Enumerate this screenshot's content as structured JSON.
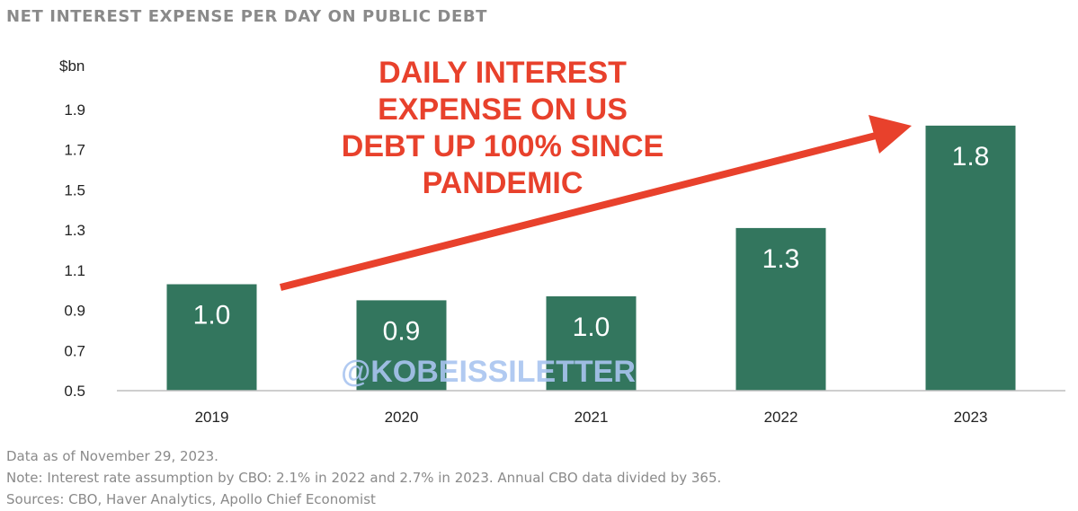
{
  "title": "NET INTEREST EXPENSE PER DAY ON PUBLIC DEBT",
  "chart_data": {
    "type": "bar",
    "title": "NET INTEREST EXPENSE PER DAY ON PUBLIC DEBT",
    "ylabel": "$bn",
    "xlabel": "",
    "categories": [
      "2019",
      "2020",
      "2021",
      "2022",
      "2023"
    ],
    "values": [
      1.03,
      0.95,
      0.97,
      1.31,
      1.82
    ],
    "data_labels": [
      "1.0",
      "0.9",
      "1.0",
      "1.3",
      "1.8"
    ],
    "ylim": [
      0.5,
      1.9
    ],
    "yticks": [
      "0.5",
      "0.7",
      "0.9",
      "1.1",
      "1.3",
      "1.5",
      "1.7",
      "1.9"
    ],
    "grid": false,
    "bar_color": "#33765e",
    "annotation": {
      "lines": [
        "DAILY INTEREST",
        "EXPENSE ON US",
        "DEBT UP 100% SINCE",
        "PANDEMIC"
      ],
      "color": "#e8412c"
    },
    "watermark": "@KOBEISSILETTER",
    "watermark_color": "#a9c4f0"
  },
  "footnotes": {
    "data_as_of": "Data as of November 29, 2023.",
    "note": "Note: Interest rate assumption by CBO: 2.1% in 2022 and 2.7% in 2023. Annual CBO data divided by 365.",
    "sources": "Sources: CBO, Haver Analytics, Apollo Chief Economist"
  }
}
